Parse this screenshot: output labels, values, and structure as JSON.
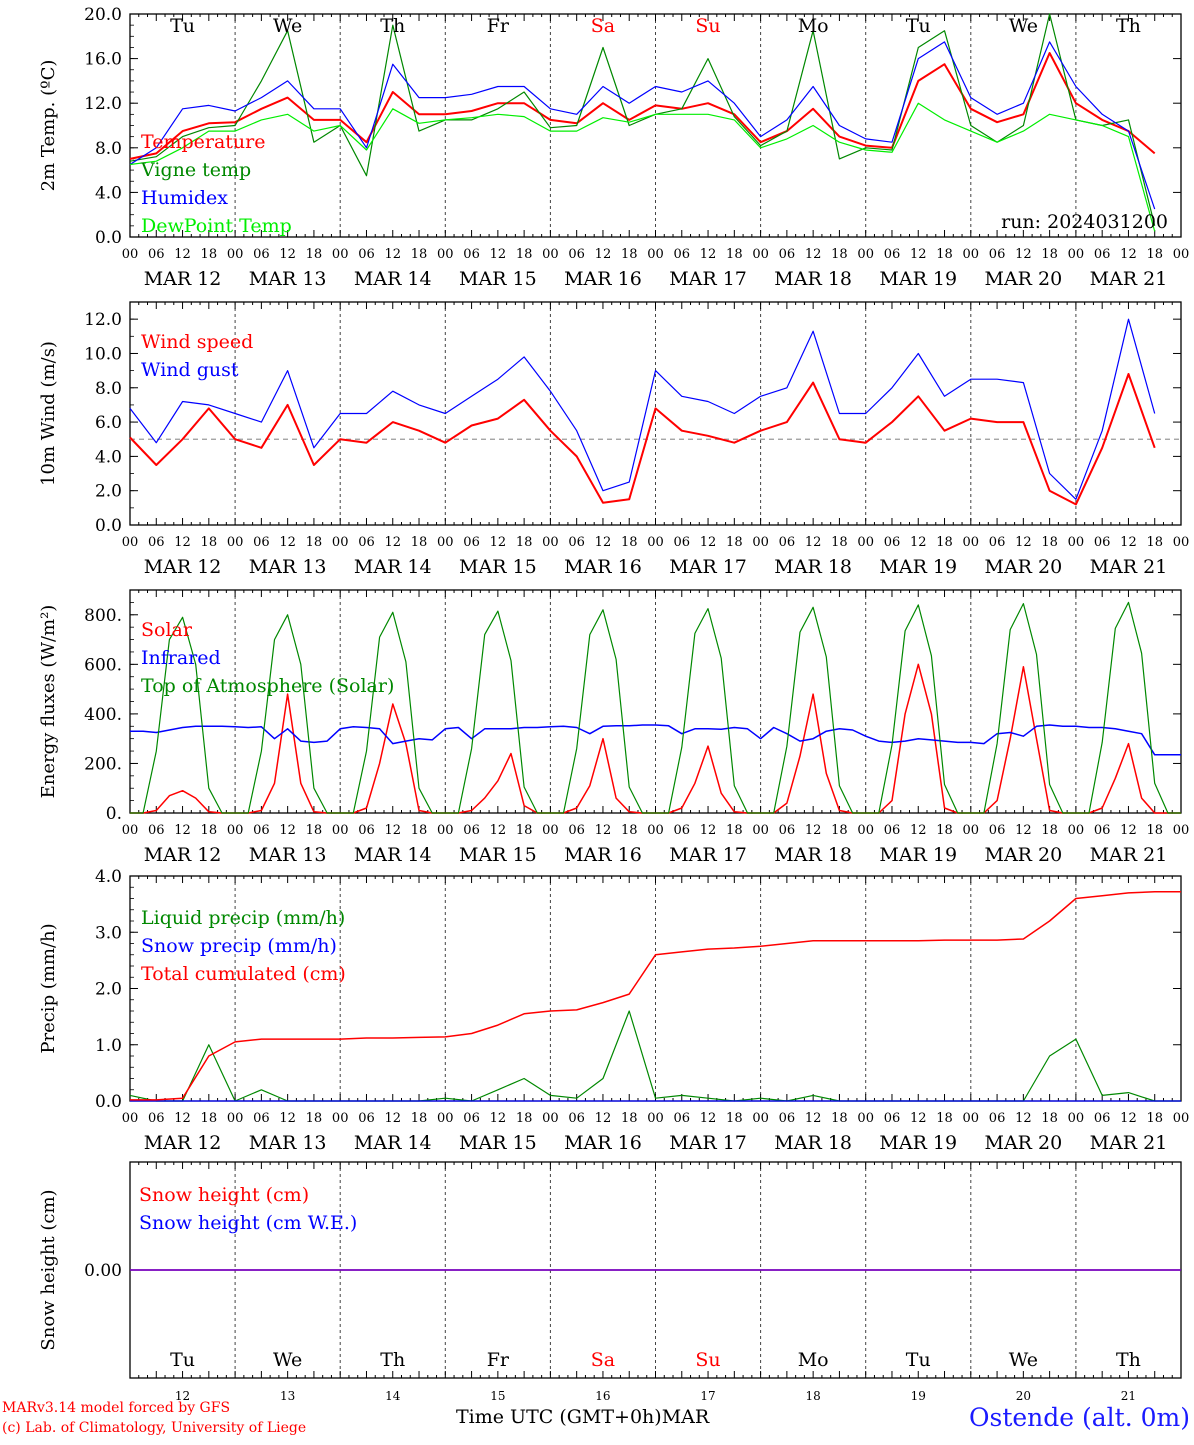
{
  "colors": {
    "temperature": "#ff0000",
    "vigne": "#008800",
    "humidex": "#0000ff",
    "dewpoint": "#00ee00",
    "weekend": "#ff0000",
    "ref_line": "#999999",
    "snow": "#7700bb",
    "site": "#1a1aff"
  },
  "x_axis": {
    "hour_ticks": [
      "00",
      "06",
      "12",
      "18"
    ],
    "final_tick": "00",
    "dates": [
      "MAR 12",
      "MAR 13",
      "MAR 14",
      "MAR 15",
      "MAR 16",
      "MAR 17",
      "MAR 18",
      "MAR 19",
      "MAR 20",
      "MAR 21"
    ],
    "weekdays": [
      "Tu",
      "We",
      "Th",
      "Fr",
      "Sa",
      "Su",
      "Mo",
      "Tu",
      "We",
      "Th"
    ],
    "weekend_flags": [
      false,
      false,
      false,
      false,
      true,
      true,
      false,
      false,
      false,
      false
    ],
    "day_numbers": [
      "12",
      "13",
      "14",
      "15",
      "16",
      "17",
      "18",
      "19",
      "20",
      "21"
    ],
    "month": "MAR",
    "title": "Time UTC (GMT+0h)"
  },
  "footer": {
    "model_line": "MARv3.14 model forced by GFS",
    "copyright_line": "(c) Lab. of Climatology, University of Liege",
    "site": "Ostende (alt. 0m)"
  },
  "chart_data": [
    {
      "type": "line",
      "ylabel": "2m Temp. (ºC)",
      "ylim": [
        0,
        20
      ],
      "yticks": [
        "0.0",
        "4.0",
        "8.0",
        "12.0",
        "16.0",
        "20.0"
      ],
      "annotation": "run: 2024031200",
      "x_hours": [
        0,
        6,
        12,
        18,
        24,
        30,
        36,
        42,
        48,
        54,
        60,
        66,
        72,
        78,
        84,
        90,
        96,
        102,
        108,
        114,
        120,
        126,
        132,
        138,
        144,
        150,
        156,
        162,
        168,
        174,
        180,
        186,
        192,
        198,
        204,
        210,
        216,
        222,
        228,
        234
      ],
      "series": [
        {
          "name": "Temperature",
          "color": "#ff0000",
          "values": [
            7.0,
            7.5,
            9.5,
            10.2,
            10.3,
            11.5,
            12.5,
            10.5,
            10.5,
            8.5,
            13.0,
            11.0,
            11.0,
            11.3,
            12.0,
            12.0,
            10.5,
            10.2,
            12.0,
            10.5,
            11.8,
            11.5,
            12.0,
            11.0,
            8.5,
            9.5,
            11.5,
            9.0,
            8.2,
            8.0,
            14.0,
            15.5,
            11.5,
            10.3,
            11.0,
            16.5,
            12.0,
            10.5,
            9.5,
            7.5
          ]
        },
        {
          "name": "Vigne temp",
          "color": "#008800",
          "values": [
            6.8,
            7.2,
            9.0,
            9.8,
            10.0,
            14.0,
            18.5,
            8.5,
            10.0,
            5.5,
            19.0,
            9.5,
            10.5,
            10.5,
            11.5,
            13.0,
            9.8,
            10.0,
            17.0,
            10.0,
            11.0,
            11.5,
            16.0,
            10.8,
            8.2,
            9.5,
            18.5,
            7.0,
            8.0,
            7.8,
            17.0,
            18.5,
            10.0,
            8.5,
            10.0,
            20.0,
            10.5,
            10.0,
            10.5,
            1.0
          ]
        },
        {
          "name": "Humidex",
          "color": "#0000ff",
          "values": [
            6.5,
            8.0,
            11.5,
            11.8,
            11.3,
            12.5,
            14.0,
            11.5,
            11.5,
            8.0,
            15.5,
            12.5,
            12.5,
            12.8,
            13.5,
            13.5,
            11.5,
            11.0,
            13.5,
            12.0,
            13.5,
            13.0,
            14.0,
            12.0,
            9.0,
            10.5,
            13.5,
            10.0,
            8.8,
            8.5,
            16.0,
            17.5,
            12.5,
            11.0,
            12.0,
            17.5,
            13.5,
            11.0,
            9.5,
            2.5
          ]
        },
        {
          "name": "DewPoint Temp",
          "color": "#00ee00",
          "values": [
            6.5,
            6.8,
            8.0,
            9.5,
            9.5,
            10.5,
            11.0,
            9.5,
            10.0,
            7.8,
            11.5,
            10.2,
            10.5,
            10.7,
            11.0,
            10.8,
            9.5,
            9.5,
            10.7,
            10.3,
            11.0,
            11.0,
            11.0,
            10.5,
            8.0,
            8.8,
            10.0,
            8.5,
            7.8,
            7.6,
            12.0,
            10.5,
            9.5,
            8.5,
            9.5,
            11.0,
            10.5,
            10.0,
            9.0,
            0.5
          ]
        }
      ]
    },
    {
      "type": "line",
      "ylabel": "10m Wind (m/s)",
      "ylim": [
        0,
        13
      ],
      "yticks": [
        "0.0",
        "2.0",
        "4.0",
        "6.0",
        "8.0",
        "10.0",
        "12.0"
      ],
      "reference_line": 5.0,
      "x_hours": [
        0,
        6,
        12,
        18,
        24,
        30,
        36,
        42,
        48,
        54,
        60,
        66,
        72,
        78,
        84,
        90,
        96,
        102,
        108,
        114,
        120,
        126,
        132,
        138,
        144,
        150,
        156,
        162,
        168,
        174,
        180,
        186,
        192,
        198,
        204,
        210,
        216,
        222,
        228,
        234
      ],
      "series": [
        {
          "name": "Wind speed",
          "color": "#ff0000",
          "values": [
            5.1,
            3.5,
            5.0,
            6.8,
            5.0,
            4.5,
            7.0,
            3.5,
            5.0,
            4.8,
            6.0,
            5.5,
            4.8,
            5.8,
            6.2,
            7.3,
            5.5,
            4.0,
            1.3,
            1.5,
            6.8,
            5.5,
            5.2,
            4.8,
            5.5,
            6.0,
            8.3,
            5.0,
            4.8,
            6.0,
            7.5,
            5.5,
            6.2,
            6.0,
            6.0,
            2.0,
            1.2,
            4.5,
            8.8,
            4.5
          ]
        },
        {
          "name": "Wind gust",
          "color": "#0000ff",
          "values": [
            6.8,
            4.8,
            7.2,
            7.0,
            6.5,
            6.0,
            9.0,
            4.5,
            6.5,
            6.5,
            7.8,
            7.0,
            6.5,
            7.5,
            8.5,
            9.8,
            7.8,
            5.5,
            2.0,
            2.5,
            9.0,
            7.5,
            7.2,
            6.5,
            7.5,
            8.0,
            11.3,
            6.5,
            6.5,
            8.0,
            10.0,
            7.5,
            8.5,
            8.5,
            8.3,
            3.0,
            1.5,
            5.5,
            12.0,
            6.5
          ]
        }
      ]
    },
    {
      "type": "line",
      "ylabel": "Energy fluxes (W/m²)",
      "ylim": [
        0,
        900
      ],
      "yticks": [
        "0.",
        "200.",
        "400.",
        "600.",
        "800."
      ],
      "x_hours": [
        0,
        3,
        6,
        9,
        12,
        15,
        18,
        21,
        24,
        27,
        30,
        33,
        36,
        39,
        42,
        45,
        48,
        51,
        54,
        57,
        60,
        63,
        66,
        69,
        72,
        75,
        78,
        81,
        84,
        87,
        90,
        93,
        96,
        99,
        102,
        105,
        108,
        111,
        114,
        117,
        120,
        123,
        126,
        129,
        132,
        135,
        138,
        141,
        144,
        147,
        150,
        153,
        156,
        159,
        162,
        165,
        168,
        171,
        174,
        177,
        180,
        183,
        186,
        189,
        192,
        195,
        198,
        201,
        204,
        207,
        210,
        213,
        216,
        219,
        222,
        225,
        228,
        231,
        234,
        237,
        240
      ],
      "series": [
        {
          "name": "Solar",
          "color": "#ff0000",
          "values": [
            0,
            0,
            10,
            70,
            90,
            60,
            5,
            0,
            0,
            0,
            10,
            120,
            480,
            120,
            5,
            0,
            0,
            0,
            20,
            200,
            440,
            280,
            10,
            0,
            0,
            0,
            10,
            60,
            130,
            240,
            30,
            0,
            0,
            0,
            20,
            110,
            300,
            60,
            5,
            0,
            0,
            0,
            20,
            120,
            270,
            80,
            5,
            0,
            0,
            0,
            40,
            230,
            480,
            160,
            10,
            0,
            0,
            0,
            50,
            400,
            600,
            400,
            20,
            0,
            0,
            0,
            50,
            300,
            590,
            300,
            10,
            0,
            0,
            0,
            20,
            140,
            280,
            60,
            0,
            0,
            0
          ]
        },
        {
          "name": "Infrared",
          "color": "#0000ff",
          "values": [
            330,
            330,
            325,
            335,
            345,
            350,
            350,
            350,
            348,
            345,
            348,
            300,
            340,
            290,
            285,
            290,
            340,
            348,
            345,
            340,
            280,
            290,
            300,
            295,
            340,
            345,
            300,
            340,
            340,
            340,
            345,
            345,
            348,
            350,
            345,
            320,
            350,
            352,
            352,
            355,
            355,
            352,
            320,
            340,
            340,
            338,
            345,
            340,
            300,
            345,
            320,
            290,
            300,
            330,
            340,
            335,
            310,
            290,
            285,
            290,
            300,
            295,
            290,
            285,
            285,
            280,
            320,
            325,
            310,
            350,
            355,
            350,
            350,
            345,
            345,
            340,
            330,
            320,
            235,
            235,
            235
          ]
        },
        {
          "name": "Top of Atmosphere (Solar)",
          "color": "#008800",
          "values": [
            0,
            0,
            250,
            700,
            790,
            600,
            100,
            0,
            0,
            0,
            250,
            700,
            800,
            600,
            100,
            0,
            0,
            0,
            250,
            710,
            810,
            610,
            100,
            0,
            0,
            0,
            260,
            720,
            815,
            615,
            105,
            0,
            0,
            0,
            260,
            720,
            820,
            620,
            105,
            0,
            0,
            0,
            265,
            725,
            825,
            625,
            110,
            0,
            0,
            0,
            270,
            730,
            830,
            630,
            110,
            0,
            0,
            0,
            275,
            735,
            840,
            635,
            115,
            0,
            0,
            0,
            280,
            740,
            845,
            640,
            115,
            0,
            0,
            0,
            285,
            745,
            850,
            645,
            120,
            0,
            0
          ]
        }
      ]
    },
    {
      "type": "line",
      "ylabel": "Precip (mm/h)",
      "ylim": [
        0,
        4
      ],
      "yticks": [
        "0.0",
        "1.0",
        "2.0",
        "3.0",
        "4.0"
      ],
      "x_hours": [
        0,
        6,
        12,
        18,
        24,
        30,
        36,
        42,
        48,
        54,
        60,
        66,
        72,
        78,
        84,
        90,
        96,
        102,
        108,
        114,
        120,
        126,
        132,
        138,
        144,
        150,
        156,
        162,
        168,
        174,
        180,
        186,
        192,
        198,
        204,
        210,
        216,
        222,
        228,
        234,
        240
      ],
      "series": [
        {
          "name": "Liquid precip (mm/h)",
          "color": "#008800",
          "values": [
            0.1,
            0.0,
            0.0,
            1.0,
            0.0,
            0.2,
            0.0,
            0.0,
            0.0,
            0.0,
            0.0,
            0.0,
            0.05,
            0.0,
            0.2,
            0.4,
            0.1,
            0.05,
            0.4,
            1.6,
            0.05,
            0.1,
            0.05,
            0.0,
            0.05,
            0.0,
            0.1,
            0.0,
            0.0,
            0.0,
            0.0,
            0.0,
            0.0,
            0.0,
            0.0,
            0.8,
            1.1,
            0.1,
            0.15,
            0.0,
            0.0
          ]
        },
        {
          "name": "Snow precip (mm/h)",
          "color": "#0000ff",
          "values": [
            0,
            0,
            0,
            0,
            0,
            0,
            0,
            0,
            0,
            0,
            0,
            0,
            0,
            0,
            0,
            0,
            0,
            0,
            0,
            0,
            0,
            0,
            0,
            0,
            0,
            0,
            0,
            0,
            0,
            0,
            0,
            0,
            0,
            0,
            0,
            0,
            0,
            0,
            0,
            0,
            0
          ]
        },
        {
          "name": "Total cumulated (cm)",
          "color": "#ff0000",
          "values": [
            0.02,
            0.02,
            0.05,
            0.8,
            1.05,
            1.1,
            1.1,
            1.1,
            1.1,
            1.12,
            1.12,
            1.13,
            1.14,
            1.2,
            1.35,
            1.55,
            1.6,
            1.62,
            1.75,
            1.9,
            2.6,
            2.65,
            2.7,
            2.72,
            2.75,
            2.8,
            2.85,
            2.85,
            2.85,
            2.85,
            2.85,
            2.86,
            2.86,
            2.86,
            2.88,
            3.2,
            3.6,
            3.65,
            3.7,
            3.72,
            3.72
          ]
        }
      ]
    },
    {
      "type": "line",
      "ylabel": "Snow height (cm)",
      "yticks": [
        "0.00"
      ],
      "x_hours": [
        0,
        240
      ],
      "series": [
        {
          "name": "Snow height (cm)",
          "color": "#ff0000",
          "values": [
            0,
            0
          ]
        },
        {
          "name": "Snow height (cm W.E.)",
          "color": "#0000ff",
          "values": [
            0,
            0
          ]
        }
      ]
    }
  ]
}
